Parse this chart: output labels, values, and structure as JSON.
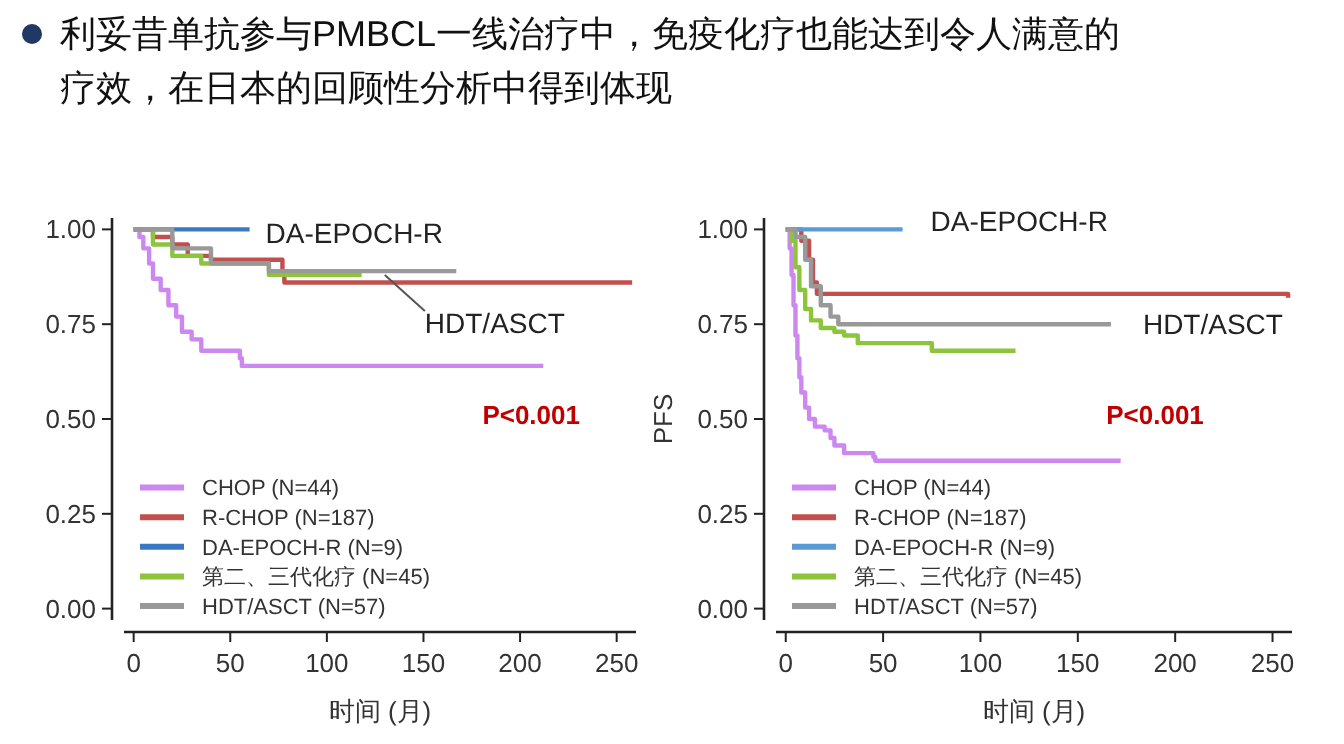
{
  "chart_data": [
    {
      "type": "step",
      "title": "利妥昔单抗参与PMBCL一线治疗中，免疫化疗也能达到令人满意的疗效，在日本的回顾性分析中得到体现",
      "xlabel": "时间 (月)",
      "xlim": [
        -5,
        260
      ],
      "xticks": [
        0,
        50,
        100,
        150,
        200,
        250
      ],
      "ylim": [
        -0.03,
        1.03
      ],
      "yticks": [
        {
          "value": 1,
          "label": "1.00"
        },
        {
          "value": 0.75,
          "label": "0.75"
        },
        {
          "value": 0.5,
          "label": "0.50"
        },
        {
          "value": 0.25,
          "label": "0.25"
        },
        {
          "value": 0,
          "label": "0.00"
        }
      ],
      "legend": "bottom left",
      "grid": false,
      "line_style": "solid",
      "marker": "none",
      "annotations": [
        {
          "text": "DA-EPOCH-R",
          "x": 60,
          "y": 1.0
        },
        {
          "text": "HDT/ASCT",
          "x": 130,
          "y": 0.89
        },
        "P<0.001"
      ],
      "series": [
        {
          "name": "CHOP (N=44)",
          "color": "#cc88ee",
          "x": [
            0,
            3,
            5,
            8,
            10,
            14,
            18,
            22,
            25,
            30,
            35,
            55,
            56,
            212
          ],
          "values": [
            1,
            0.98,
            0.95,
            0.91,
            0.87,
            0.84,
            0.8,
            0.77,
            0.73,
            0.71,
            0.68,
            0.66,
            0.64,
            0.64
          ]
        },
        {
          "name": "R-CHOP (N=187)",
          "color": "#c0504d",
          "x": [
            0,
            10,
            20,
            28,
            40,
            77,
            78,
            258
          ],
          "values": [
            1,
            0.98,
            0.96,
            0.93,
            0.92,
            0.88,
            0.86,
            0.86
          ]
        },
        {
          "name": "DA-EPOCH-R (N=9)",
          "color": "#3a78c4",
          "x": [
            0,
            60
          ],
          "values": [
            1,
            1
          ]
        },
        {
          "name": "第二、三代化疗 (N=45)",
          "color": "#8cc43c",
          "x": [
            0,
            10,
            20,
            35,
            70,
            118
          ],
          "values": [
            1,
            0.96,
            0.93,
            0.91,
            0.88,
            0.88
          ]
        },
        {
          "name": "HDT/ASCT (N=57)",
          "color": "#999999",
          "x": [
            0,
            20,
            40,
            70,
            167
          ],
          "values": [
            1,
            0.95,
            0.91,
            0.89,
            0.89
          ]
        }
      ]
    },
    {
      "type": "step",
      "xlabel": "时间 (月)",
      "ylabel": "PFS",
      "xlim": [
        -5,
        260
      ],
      "xticks": [
        0,
        50,
        100,
        150,
        200,
        250
      ],
      "ylim": [
        -0.03,
        1.03
      ],
      "yticks": [
        {
          "value": 1,
          "label": "1.00"
        },
        {
          "value": 0.75,
          "label": "0.75"
        },
        {
          "value": 0.5,
          "label": "0.50"
        },
        {
          "value": 0.25,
          "label": "0.25"
        },
        {
          "value": 0,
          "label": "0.00"
        }
      ],
      "legend": "bottom left",
      "grid": false,
      "line_style": "solid",
      "marker": "none",
      "annotations": [
        {
          "text": "DA-EPOCH-R",
          "x": 60,
          "y": 1.0
        },
        {
          "text": "HDT/ASCT",
          "x": 167,
          "y": 0.75
        },
        "P<0.001"
      ],
      "series": [
        {
          "name": "CHOP (N=44)",
          "color": "#cc88ee",
          "x": [
            0,
            2,
            3,
            4,
            5,
            6,
            7,
            8,
            10,
            12,
            15,
            20,
            23,
            25,
            30,
            45,
            46,
            172
          ],
          "values": [
            1,
            0.95,
            0.88,
            0.8,
            0.72,
            0.66,
            0.61,
            0.57,
            0.53,
            0.5,
            0.48,
            0.47,
            0.45,
            0.43,
            0.41,
            0.4,
            0.39,
            0.39
          ]
        },
        {
          "name": "R-CHOP (N=187)",
          "color": "#c0504d",
          "x": [
            0,
            8,
            12,
            14,
            16,
            258
          ],
          "values": [
            1,
            0.97,
            0.92,
            0.86,
            0.83,
            0.82
          ]
        },
        {
          "name": "DA-EPOCH-R (N=9)",
          "color": "#5b9bd5",
          "x": [
            0,
            60
          ],
          "values": [
            1,
            1
          ]
        },
        {
          "name": "第二、三代化疗 (N=45)",
          "color": "#8cc43c",
          "x": [
            0,
            3,
            5,
            7,
            10,
            13,
            18,
            25,
            30,
            37,
            75,
            118
          ],
          "values": [
            1,
            0.97,
            0.9,
            0.84,
            0.79,
            0.76,
            0.74,
            0.73,
            0.72,
            0.7,
            0.68,
            0.68
          ]
        },
        {
          "name": "HDT/ASCT (N=57)",
          "color": "#999999",
          "x": [
            0,
            5,
            10,
            13,
            18,
            23,
            27,
            167
          ],
          "values": [
            1,
            0.98,
            0.92,
            0.85,
            0.8,
            0.77,
            0.75,
            0.75
          ]
        }
      ]
    }
  ]
}
